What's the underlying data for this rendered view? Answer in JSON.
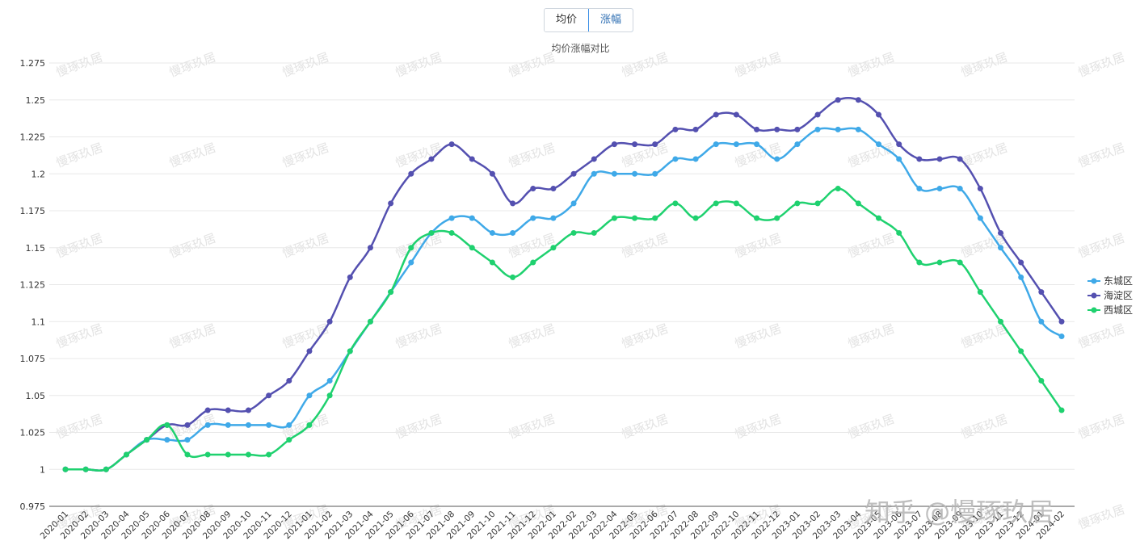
{
  "tabs": [
    {
      "label": "均价",
      "active": false
    },
    {
      "label": "涨幅",
      "active": true
    }
  ],
  "brand_watermark": "知乎 @慢琢玖居",
  "watermark_text": "慢琢玖居",
  "chart_data": {
    "type": "line",
    "title": "均价涨幅对比",
    "xlabel": "",
    "ylabel": "",
    "ylim": [
      0.975,
      1.275
    ],
    "y_ticks": [
      "0.975",
      "1",
      "1.025",
      "1.05",
      "1.075",
      "1.1",
      "1.125",
      "1.15",
      "1.175",
      "1.2",
      "1.225",
      "1.25",
      "1.275"
    ],
    "grid": true,
    "legend_position": "right",
    "categories": [
      "2020-01",
      "2020-02",
      "2020-03",
      "2020-04",
      "2020-05",
      "2020-06",
      "2020-07",
      "2020-08",
      "2020-09",
      "2020-10",
      "2020-11",
      "2020-12",
      "2021-01",
      "2021-02",
      "2021-03",
      "2021-04",
      "2021-05",
      "2021-06",
      "2021-07",
      "2021-08",
      "2021-09",
      "2021-10",
      "2021-11",
      "2021-12",
      "2022-01",
      "2022-02",
      "2022-03",
      "2022-04",
      "2022-05",
      "2022-06",
      "2022-07",
      "2022-08",
      "2022-09",
      "2022-10",
      "2022-11",
      "2022-12",
      "2023-01",
      "2023-02",
      "2023-03",
      "2023-04",
      "2023-05",
      "2023-06",
      "2023-07",
      "2023-08",
      "2023-09",
      "2023-10",
      "2023-11",
      "2023-12",
      "2024-01",
      "2024-02"
    ],
    "series": [
      {
        "name": "东城区",
        "color": "#3fa9e8",
        "values": [
          1.0,
          1.0,
          1.0,
          1.01,
          1.02,
          1.02,
          1.02,
          1.03,
          1.03,
          1.03,
          1.03,
          1.03,
          1.05,
          1.06,
          1.08,
          1.1,
          1.12,
          1.14,
          1.16,
          1.17,
          1.17,
          1.16,
          1.16,
          1.17,
          1.17,
          1.18,
          1.2,
          1.2,
          1.2,
          1.2,
          1.21,
          1.21,
          1.22,
          1.22,
          1.22,
          1.21,
          1.22,
          1.23,
          1.23,
          1.23,
          1.22,
          1.21,
          1.19,
          1.19,
          1.19,
          1.17,
          1.15,
          1.13,
          1.1,
          1.09
        ]
      },
      {
        "name": "海淀区",
        "color": "#5450b0",
        "values": [
          1.0,
          1.0,
          1.0,
          1.01,
          1.02,
          1.03,
          1.03,
          1.04,
          1.04,
          1.04,
          1.05,
          1.06,
          1.08,
          1.1,
          1.13,
          1.15,
          1.18,
          1.2,
          1.21,
          1.22,
          1.21,
          1.2,
          1.18,
          1.19,
          1.19,
          1.2,
          1.21,
          1.22,
          1.22,
          1.22,
          1.23,
          1.23,
          1.24,
          1.24,
          1.23,
          1.23,
          1.23,
          1.24,
          1.25,
          1.25,
          1.24,
          1.22,
          1.21,
          1.21,
          1.21,
          1.19,
          1.16,
          1.14,
          1.12,
          1.1
        ]
      },
      {
        "name": "西城区",
        "color": "#1fd16f",
        "values": [
          1.0,
          1.0,
          1.0,
          1.01,
          1.02,
          1.03,
          1.01,
          1.01,
          1.01,
          1.01,
          1.01,
          1.02,
          1.03,
          1.05,
          1.08,
          1.1,
          1.12,
          1.15,
          1.16,
          1.16,
          1.15,
          1.14,
          1.13,
          1.14,
          1.15,
          1.16,
          1.16,
          1.17,
          1.17,
          1.17,
          1.18,
          1.17,
          1.18,
          1.18,
          1.17,
          1.17,
          1.18,
          1.18,
          1.19,
          1.18,
          1.17,
          1.16,
          1.14,
          1.14,
          1.14,
          1.12,
          1.1,
          1.08,
          1.06,
          1.04
        ]
      }
    ]
  }
}
